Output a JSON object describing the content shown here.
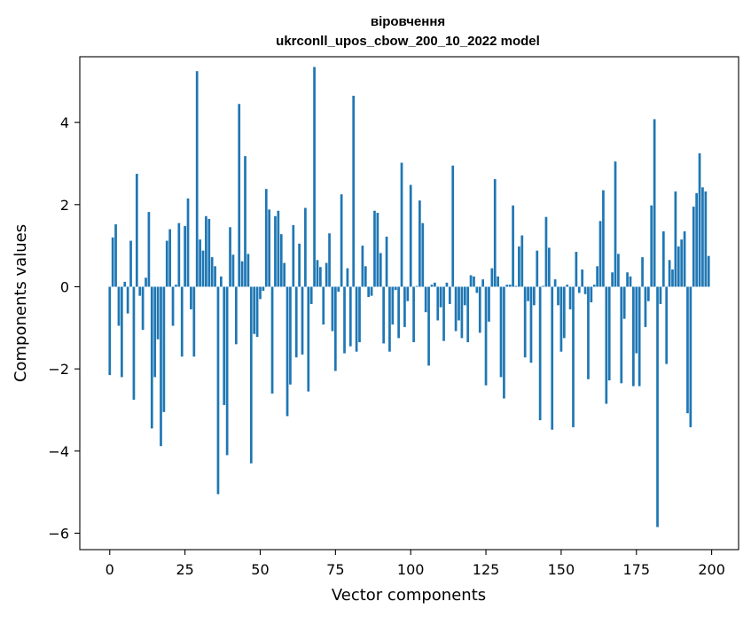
{
  "chart_data": {
    "type": "bar",
    "title": "вірoвчення",
    "subtitle": "ukrconll_upos_cbow_200_10_2022 model",
    "xlabel": "Vector components",
    "ylabel": "Components values",
    "xlim": [
      -9.95,
      208.95
    ],
    "ylim": [
      -6.4,
      5.6
    ],
    "xticks": [
      0,
      25,
      50,
      75,
      100,
      125,
      150,
      175,
      200
    ],
    "xtick_labels": [
      "0",
      "25",
      "50",
      "75",
      "100",
      "125",
      "150",
      "175",
      "200"
    ],
    "yticks": [
      -6,
      -4,
      -2,
      0,
      2,
      4
    ],
    "ytick_labels": [
      "−6",
      "−4",
      "−2",
      "0",
      "2",
      "4"
    ],
    "grid": false,
    "bar_color": "#1f77b4",
    "x": [
      0,
      1,
      2,
      3,
      4,
      5,
      6,
      7,
      8,
      9,
      10,
      11,
      12,
      13,
      14,
      15,
      16,
      17,
      18,
      19,
      20,
      21,
      22,
      23,
      24,
      25,
      26,
      27,
      28,
      29,
      30,
      31,
      32,
      33,
      34,
      35,
      36,
      37,
      38,
      39,
      40,
      41,
      42,
      43,
      44,
      45,
      46,
      47,
      48,
      49,
      50,
      51,
      52,
      53,
      54,
      55,
      56,
      57,
      58,
      59,
      60,
      61,
      62,
      63,
      64,
      65,
      66,
      67,
      68,
      69,
      70,
      71,
      72,
      73,
      74,
      75,
      76,
      77,
      78,
      79,
      80,
      81,
      82,
      83,
      84,
      85,
      86,
      87,
      88,
      89,
      90,
      91,
      92,
      93,
      94,
      95,
      96,
      97,
      98,
      99,
      100,
      101,
      102,
      103,
      104,
      105,
      106,
      107,
      108,
      109,
      110,
      111,
      112,
      113,
      114,
      115,
      116,
      117,
      118,
      119,
      120,
      121,
      122,
      123,
      124,
      125,
      126,
      127,
      128,
      129,
      130,
      131,
      132,
      133,
      134,
      135,
      136,
      137,
      138,
      139,
      140,
      141,
      142,
      143,
      144,
      145,
      146,
      147,
      148,
      149,
      150,
      151,
      152,
      153,
      154,
      155,
      156,
      157,
      158,
      159,
      160,
      161,
      162,
      163,
      164,
      165,
      166,
      167,
      168,
      169,
      170,
      171,
      172,
      173,
      174,
      175,
      176,
      177,
      178,
      179,
      180,
      181,
      182,
      183,
      184,
      185,
      186,
      187,
      188,
      189,
      190,
      191,
      192,
      193,
      194,
      195,
      196,
      197,
      198,
      199
    ],
    "values": [
      -2.15,
      1.2,
      1.52,
      -0.95,
      -2.2,
      0.12,
      -0.65,
      1.12,
      -2.75,
      2.75,
      -0.22,
      -1.05,
      0.22,
      1.82,
      -3.45,
      -2.2,
      -1.28,
      -3.88,
      -3.05,
      1.12,
      1.4,
      -0.95,
      0.05,
      1.55,
      -1.7,
      1.48,
      2.15,
      -0.55,
      -1.7,
      5.25,
      1.15,
      0.88,
      1.72,
      1.65,
      0.72,
      0.5,
      -5.05,
      0.25,
      -2.88,
      -4.1,
      1.45,
      0.78,
      -1.4,
      4.45,
      0.62,
      3.18,
      0.8,
      -4.3,
      -1.15,
      -1.22,
      -0.3,
      -0.1,
      2.38,
      1.88,
      -2.6,
      1.72,
      1.85,
      1.28,
      0.58,
      -3.15,
      -2.38,
      1.5,
      -1.72,
      1.05,
      -1.65,
      1.92,
      -2.55,
      -0.42,
      5.35,
      0.65,
      0.48,
      -0.92,
      0.58,
      1.3,
      -1.08,
      -2.05,
      -0.12,
      2.25,
      -1.62,
      0.45,
      -1.45,
      4.65,
      -1.58,
      -1.35,
      1.0,
      0.5,
      -0.25,
      -0.22,
      1.85,
      1.8,
      0.82,
      -1.38,
      1.22,
      -1.58,
      -0.92,
      -0.08,
      -1.25,
      3.02,
      -0.98,
      -0.35,
      2.48,
      -1.35,
      0.02,
      2.1,
      1.55,
      -0.62,
      -1.92,
      0.05,
      0.1,
      -0.82,
      -0.5,
      -1.32,
      0.1,
      -0.42,
      2.95,
      -1.08,
      -0.82,
      -1.25,
      -0.45,
      -1.35,
      0.28,
      0.25,
      -0.15,
      -1.12,
      0.18,
      -2.4,
      -0.85,
      0.45,
      2.62,
      0.25,
      -2.2,
      -2.72,
      0.05,
      0.05,
      1.98,
      0.02,
      0.98,
      1.25,
      -1.72,
      -0.35,
      -1.85,
      -0.45,
      0.88,
      -3.25,
      0.02,
      1.7,
      0.95,
      -3.48,
      0.18,
      -0.45,
      -1.58,
      -1.25,
      0.05,
      -0.55,
      -3.42,
      0.85,
      -0.15,
      0.42,
      -0.18,
      -2.25,
      -0.38,
      0.05,
      0.5,
      1.6,
      2.35,
      -2.85,
      -2.28,
      0.35,
      3.05,
      0.8,
      -2.35,
      -0.78,
      0.35,
      0.25,
      -2.42,
      -1.62,
      -2.42,
      0.72,
      -0.98,
      -0.35,
      1.98,
      4.08,
      -5.85,
      -0.42,
      1.35,
      -1.88,
      0.65,
      0.42,
      2.32,
      0.98,
      1.15,
      1.35,
      -3.08,
      -3.42,
      1.95,
      2.28,
      3.25,
      2.42,
      2.32,
      0.75
    ]
  }
}
